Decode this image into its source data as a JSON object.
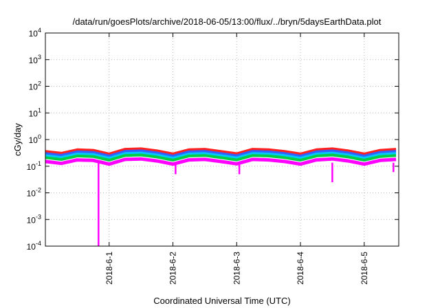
{
  "chart_data": {
    "type": "line",
    "title": "/data/run/goesPlots/archive/2018-06-05/13:00/flux/../bryn/5daysEarthData.plot",
    "xlabel": "Coordinated Universal Time (UTC)",
    "ylabel": "cGy/day",
    "y_scale": "log",
    "ylim": [
      0.0001,
      10000
    ],
    "xlim": [
      "2018-05-31T00:00",
      "2018-06-05T13:00"
    ],
    "grid": true,
    "legend": "none",
    "y_ticks": [
      {
        "base": "10",
        "exp": "-4",
        "value": 0.0001
      },
      {
        "base": "10",
        "exp": "-3",
        "value": 0.001
      },
      {
        "base": "10",
        "exp": "-2",
        "value": 0.01
      },
      {
        "base": "10",
        "exp": "-1",
        "value": 0.1
      },
      {
        "base": "10",
        "exp": "0",
        "value": 1
      },
      {
        "base": "10",
        "exp": "1",
        "value": 10
      },
      {
        "base": "10",
        "exp": "2",
        "value": 100
      },
      {
        "base": "10",
        "exp": "3",
        "value": 1000
      },
      {
        "base": "10",
        "exp": "4",
        "value": 10000
      }
    ],
    "x_ticks": [
      {
        "label": "2018-6-1",
        "value": "2018-06-01T00:00"
      },
      {
        "label": "2018-6-2",
        "value": "2018-06-02T00:00"
      },
      {
        "label": "2018-6-3",
        "value": "2018-06-03T00:00"
      },
      {
        "label": "2018-6-4",
        "value": "2018-06-04T00:00"
      },
      {
        "label": "2018-6-5",
        "value": "2018-06-05T00:00"
      }
    ],
    "series": [
      {
        "color": "#ff2020",
        "level": 0.36
      },
      {
        "color": "#3060ff",
        "level": 0.3
      },
      {
        "color": "#00c8ff",
        "level": 0.25
      },
      {
        "color": "#00cc44",
        "level": 0.21
      },
      {
        "color": "#ff00ff",
        "level": 0.15
      }
    ],
    "x": [
      "2018-05-31T00:00",
      "2018-05-31T06:00",
      "2018-05-31T12:00",
      "2018-05-31T18:00",
      "2018-06-01T00:00",
      "2018-06-01T06:00",
      "2018-06-01T12:00",
      "2018-06-01T18:00",
      "2018-06-02T00:00",
      "2018-06-02T06:00",
      "2018-06-02T12:00",
      "2018-06-02T18:00",
      "2018-06-03T00:00",
      "2018-06-03T06:00",
      "2018-06-03T12:00",
      "2018-06-03T18:00",
      "2018-06-04T00:00",
      "2018-06-04T06:00",
      "2018-06-04T12:00",
      "2018-06-04T18:00",
      "2018-06-05T00:00",
      "2018-06-05T06:00",
      "2018-06-05T12:00"
    ],
    "modulation": [
      1.0,
      0.85,
      1.15,
      1.1,
      0.8,
      1.2,
      1.25,
      1.05,
      0.8,
      1.15,
      1.2,
      1.0,
      0.82,
      1.2,
      1.15,
      1.0,
      0.8,
      1.15,
      1.25,
      1.05,
      0.8,
      1.1,
      1.2
    ],
    "dropouts": [
      {
        "x": "2018-05-31T20:00",
        "y": 0.0001
      },
      {
        "x": "2018-06-02T01:00",
        "y": 0.05
      },
      {
        "x": "2018-06-03T01:00",
        "y": 0.05
      },
      {
        "x": "2018-06-04T12:00",
        "y": 0.025
      },
      {
        "x": "2018-06-05T11:00",
        "y": 0.06
      }
    ]
  }
}
